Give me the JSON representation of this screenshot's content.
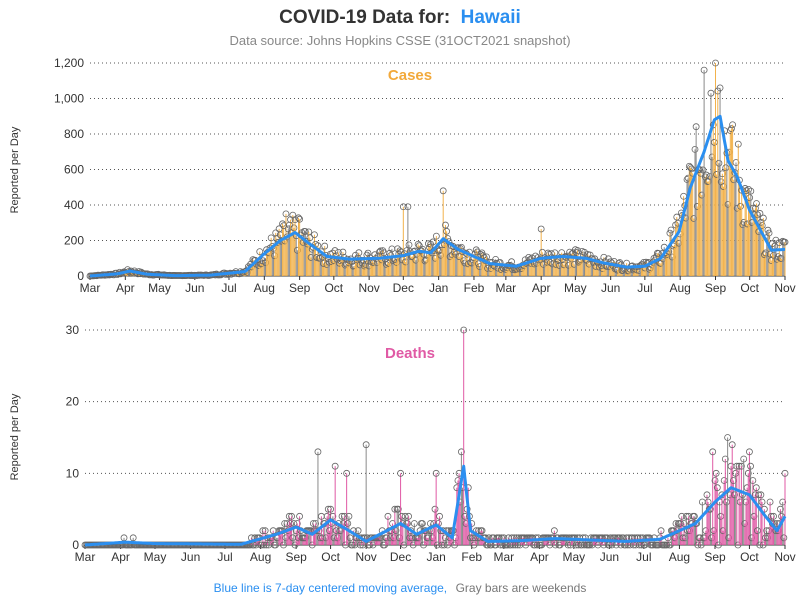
{
  "header": {
    "title_prefix": "COVID-19 Data for:",
    "location": "Hawaii",
    "subtitle": "Data source: Johns Hopkins CSSE (31OCT2021 snapshot)"
  },
  "footer": {
    "note_blue": "Blue line is 7-day centered moving average,",
    "note_gray": "Gray bars are weekends"
  },
  "colors": {
    "cases_bar": "#f2b24c",
    "deaths_bar": "#e05aa5",
    "weekend_bar": "#8a8a8a",
    "moving_avg": "#2b8ff0",
    "marker_stroke": "#666666"
  },
  "chart_data": [
    {
      "type": "bar",
      "title": "Cases",
      "ylabel": "Reported per Day",
      "ylim": [
        0,
        1200
      ],
      "yticks": [
        "0",
        "200",
        "400",
        "600",
        "800",
        "1,000",
        "1,200"
      ],
      "grid": "horizontal dotted",
      "x_ticks": [
        "Mar",
        "Apr",
        "May",
        "Jun",
        "Jul",
        "Aug",
        "Sep",
        "Oct",
        "Nov",
        "Dec",
        "Jan",
        "Feb",
        "Mar",
        "Apr",
        "May",
        "Jun",
        "Jul",
        "Aug",
        "Sep",
        "Oct",
        "Nov"
      ],
      "x_range": [
        "2020-03-01",
        "2021-11-01"
      ],
      "moving_average": [
        {
          "x": "2020-03-01",
          "y": 0
        },
        {
          "x": "2020-03-25",
          "y": 12
        },
        {
          "x": "2020-04-05",
          "y": 28
        },
        {
          "x": "2020-04-20",
          "y": 10
        },
        {
          "x": "2020-05-15",
          "y": 2
        },
        {
          "x": "2020-06-15",
          "y": 5
        },
        {
          "x": "2020-07-15",
          "y": 25
        },
        {
          "x": "2020-07-31",
          "y": 120
        },
        {
          "x": "2020-08-15",
          "y": 200
        },
        {
          "x": "2020-08-28",
          "y": 245
        },
        {
          "x": "2020-09-10",
          "y": 180
        },
        {
          "x": "2020-09-25",
          "y": 110
        },
        {
          "x": "2020-10-15",
          "y": 95
        },
        {
          "x": "2020-11-10",
          "y": 100
        },
        {
          "x": "2020-12-01",
          "y": 115
        },
        {
          "x": "2020-12-15",
          "y": 140
        },
        {
          "x": "2020-12-25",
          "y": 130
        },
        {
          "x": "2021-01-05",
          "y": 210
        },
        {
          "x": "2021-01-18",
          "y": 150
        },
        {
          "x": "2021-02-15",
          "y": 70
        },
        {
          "x": "2021-03-10",
          "y": 55
        },
        {
          "x": "2021-04-01",
          "y": 100
        },
        {
          "x": "2021-04-20",
          "y": 110
        },
        {
          "x": "2021-05-10",
          "y": 100
        },
        {
          "x": "2021-05-25",
          "y": 75
        },
        {
          "x": "2021-06-15",
          "y": 50
        },
        {
          "x": "2021-07-01",
          "y": 55
        },
        {
          "x": "2021-07-15",
          "y": 100
        },
        {
          "x": "2021-07-31",
          "y": 250
        },
        {
          "x": "2021-08-10",
          "y": 500
        },
        {
          "x": "2021-08-22",
          "y": 700
        },
        {
          "x": "2021-08-31",
          "y": 880
        },
        {
          "x": "2021-09-05",
          "y": 900
        },
        {
          "x": "2021-09-12",
          "y": 650
        },
        {
          "x": "2021-09-20",
          "y": 560
        },
        {
          "x": "2021-10-01",
          "y": 370
        },
        {
          "x": "2021-10-12",
          "y": 240
        },
        {
          "x": "2021-10-20",
          "y": 145
        },
        {
          "x": "2021-11-01",
          "y": 150
        }
      ],
      "spikes": [
        {
          "x": "2020-08-20",
          "y": 350
        },
        {
          "x": "2020-09-01",
          "y": 320
        },
        {
          "x": "2020-12-01",
          "y": 390
        },
        {
          "x": "2020-12-05",
          "y": 390
        },
        {
          "x": "2021-01-05",
          "y": 480
        },
        {
          "x": "2021-04-01",
          "y": 265
        },
        {
          "x": "2021-08-22",
          "y": 1160
        },
        {
          "x": "2021-08-28",
          "y": 1030
        },
        {
          "x": "2021-09-01",
          "y": 1200
        },
        {
          "x": "2021-09-05",
          "y": 1060
        },
        {
          "x": "2021-09-15",
          "y": 830
        }
      ]
    },
    {
      "type": "bar",
      "title": "Deaths",
      "ylabel": "Reported per Day",
      "ylim": [
        0,
        30
      ],
      "yticks": [
        "0",
        "10",
        "20",
        "30"
      ],
      "grid": "horizontal dotted",
      "x_ticks": [
        "Mar",
        "Apr",
        "May",
        "Jun",
        "Jul",
        "Aug",
        "Sep",
        "Oct",
        "Nov",
        "Dec",
        "Jan",
        "Feb",
        "Mar",
        "Apr",
        "May",
        "Jun",
        "Jul",
        "Aug",
        "Sep",
        "Oct",
        "Nov"
      ],
      "x_range": [
        "2020-03-01",
        "2021-11-01"
      ],
      "moving_average": [
        {
          "x": "2020-03-01",
          "y": 0
        },
        {
          "x": "2020-04-05",
          "y": 0.4
        },
        {
          "x": "2020-05-01",
          "y": 0.2
        },
        {
          "x": "2020-07-15",
          "y": 0.1
        },
        {
          "x": "2020-08-15",
          "y": 1.5
        },
        {
          "x": "2020-09-01",
          "y": 2.5
        },
        {
          "x": "2020-09-15",
          "y": 1.5
        },
        {
          "x": "2020-10-01",
          "y": 3.5
        },
        {
          "x": "2020-10-15",
          "y": 2.2
        },
        {
          "x": "2020-11-01",
          "y": 0.5
        },
        {
          "x": "2020-12-01",
          "y": 3.0
        },
        {
          "x": "2020-12-15",
          "y": 1.5
        },
        {
          "x": "2021-01-01",
          "y": 2.8
        },
        {
          "x": "2021-01-15",
          "y": 1.0
        },
        {
          "x": "2021-01-25",
          "y": 11.0
        },
        {
          "x": "2021-01-31",
          "y": 2.0
        },
        {
          "x": "2021-02-15",
          "y": 0.5
        },
        {
          "x": "2021-03-15",
          "y": 0.6
        },
        {
          "x": "2021-04-15",
          "y": 0.9
        },
        {
          "x": "2021-06-15",
          "y": 0.5
        },
        {
          "x": "2021-07-15",
          "y": 0.8
        },
        {
          "x": "2021-08-15",
          "y": 3.0
        },
        {
          "x": "2021-09-01",
          "y": 6.0
        },
        {
          "x": "2021-09-15",
          "y": 8.0
        },
        {
          "x": "2021-10-01",
          "y": 7.0
        },
        {
          "x": "2021-10-15",
          "y": 4.0
        },
        {
          "x": "2021-10-25",
          "y": 2.0
        },
        {
          "x": "2021-11-01",
          "y": 4.0
        }
      ],
      "spikes": [
        {
          "x": "2020-09-20",
          "y": 13
        },
        {
          "x": "2020-10-05",
          "y": 11
        },
        {
          "x": "2020-10-15",
          "y": 10
        },
        {
          "x": "2020-11-01",
          "y": 14
        },
        {
          "x": "2020-12-01",
          "y": 10
        },
        {
          "x": "2021-01-01",
          "y": 10
        },
        {
          "x": "2021-01-25",
          "y": 30
        },
        {
          "x": "2021-08-30",
          "y": 13
        },
        {
          "x": "2021-09-12",
          "y": 15
        },
        {
          "x": "2021-10-01",
          "y": 13
        },
        {
          "x": "2021-11-01",
          "y": 10
        }
      ]
    }
  ]
}
